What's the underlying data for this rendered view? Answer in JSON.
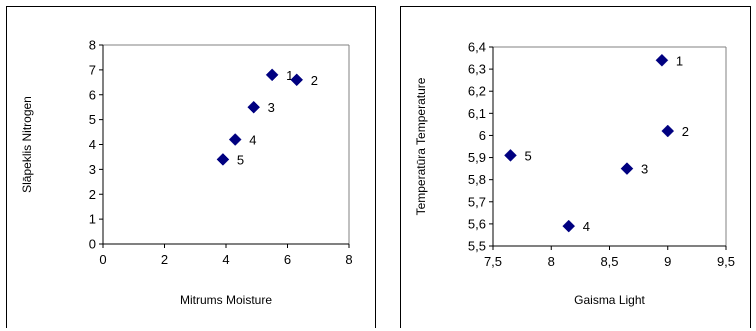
{
  "chart_data": [
    {
      "type": "scatter",
      "xlabel": "Mitrums Moisture",
      "ylabel": "Slāpeklis  Nitrogen",
      "xlim": [
        0,
        8
      ],
      "ylim": [
        0,
        8
      ],
      "xticks": [
        "0",
        "2",
        "4",
        "6",
        "8"
      ],
      "yticks": [
        "0",
        "1",
        "2",
        "3",
        "4",
        "5",
        "6",
        "7",
        "8"
      ],
      "grid": false,
      "marker_color": "#000080",
      "points": [
        {
          "label": "1",
          "x": 5.5,
          "y": 6.8
        },
        {
          "label": "2",
          "x": 6.3,
          "y": 6.6
        },
        {
          "label": "3",
          "x": 4.9,
          "y": 5.5
        },
        {
          "label": "4",
          "x": 4.3,
          "y": 4.2
        },
        {
          "label": "5",
          "x": 3.9,
          "y": 3.4
        }
      ]
    },
    {
      "type": "scatter",
      "xlabel": "Gaisma Light",
      "ylabel": "Temperatūra Temperature",
      "xlim": [
        7.5,
        9.5
      ],
      "ylim": [
        5.5,
        6.4
      ],
      "xticks": [
        "7,5",
        "8",
        "8,5",
        "9",
        "9,5"
      ],
      "yticks": [
        "5,5",
        "5,6",
        "5,7",
        "5,8",
        "5,9",
        "6",
        "6,1",
        "6,2",
        "6,3",
        "6,4"
      ],
      "grid": false,
      "marker_color": "#000080",
      "points": [
        {
          "label": "1",
          "x": 8.95,
          "y": 6.34
        },
        {
          "label": "2",
          "x": 9.0,
          "y": 6.02
        },
        {
          "label": "3",
          "x": 8.65,
          "y": 5.85
        },
        {
          "label": "4",
          "x": 8.15,
          "y": 5.59
        },
        {
          "label": "5",
          "x": 7.65,
          "y": 5.91
        }
      ]
    }
  ]
}
